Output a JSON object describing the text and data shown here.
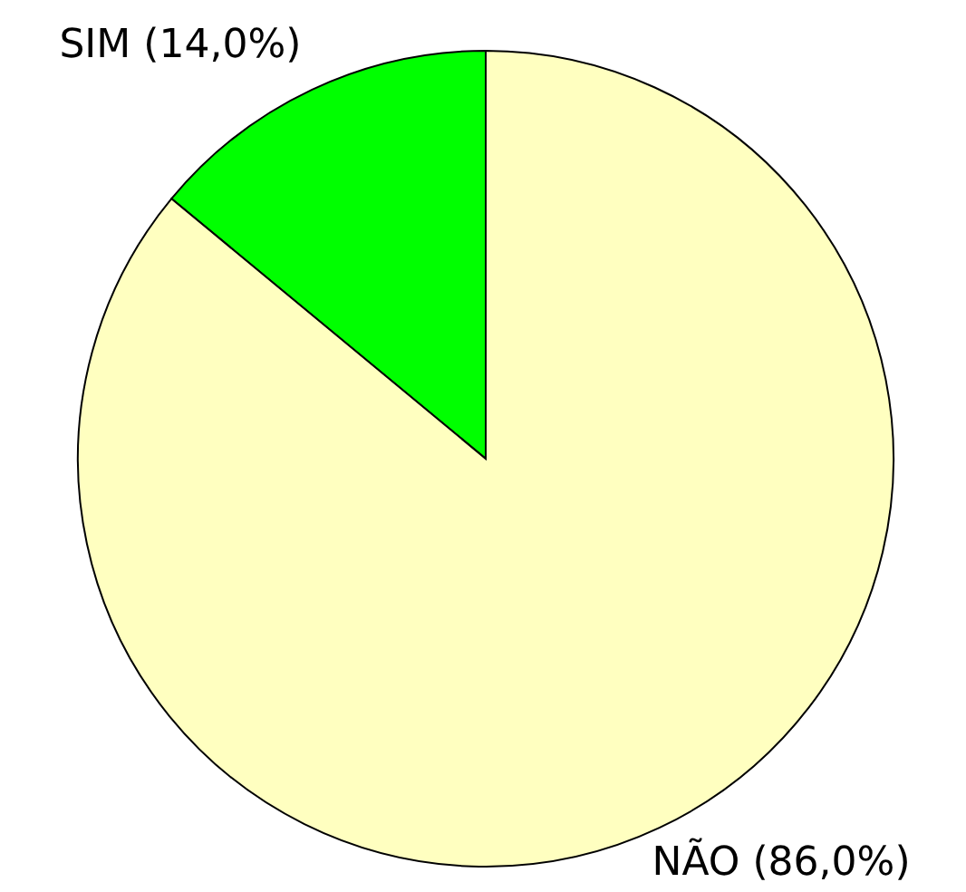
{
  "chart_data": {
    "type": "pie",
    "categories": [
      "SIM",
      "NÃO"
    ],
    "values": [
      14,
      86
    ],
    "colors": [
      "#00ff00",
      "#ffffc0"
    ],
    "value_labels": [
      "(14,0%)",
      "(86,0%)"
    ]
  }
}
